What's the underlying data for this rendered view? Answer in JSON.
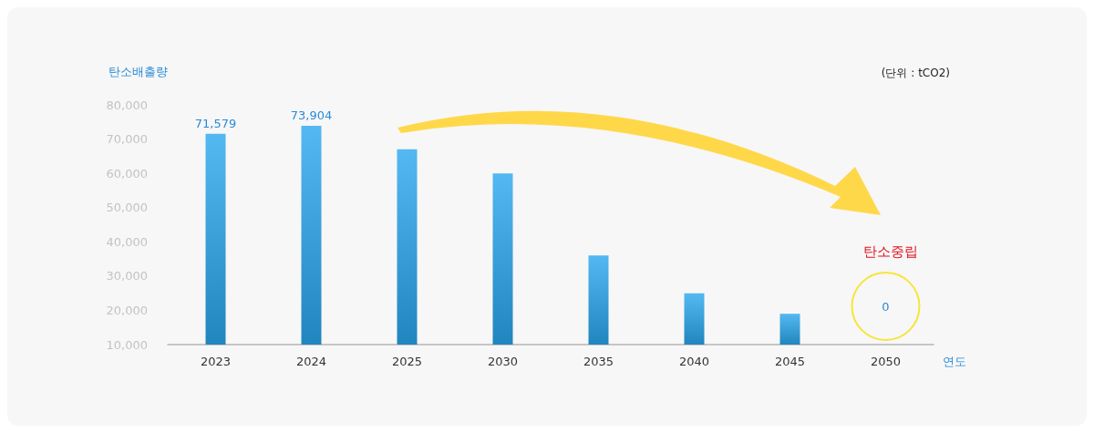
{
  "chart_data": {
    "type": "bar",
    "ylabel": "탄소배출량",
    "xlabel": "연도",
    "categories": [
      "2023",
      "2024",
      "2025",
      "2030",
      "2035",
      "2040",
      "2045",
      "2050"
    ],
    "values": [
      71579,
      73904,
      67000,
      60000,
      36000,
      25000,
      19000,
      null
    ],
    "value_labels": [
      "71,579",
      "73,904",
      null,
      null,
      null,
      null,
      null,
      null
    ],
    "color": "#29a6ee",
    "ylim": [
      10000,
      80000
    ],
    "yticks": [
      {
        "value": 10000,
        "label": "10,000"
      },
      {
        "value": 20000,
        "label": "20,000"
      },
      {
        "value": 30000,
        "label": "30,000"
      },
      {
        "value": 40000,
        "label": "40,000"
      },
      {
        "value": 50000,
        "label": "50,000"
      },
      {
        "value": 60000,
        "label": "60,000"
      },
      {
        "value": 70000,
        "label": "70,000"
      },
      {
        "value": 80000,
        "label": "80,000"
      }
    ],
    "grid": false,
    "annotations": [
      "(단위 : tCO2)",
      "탄소중립",
      "0"
    ]
  }
}
